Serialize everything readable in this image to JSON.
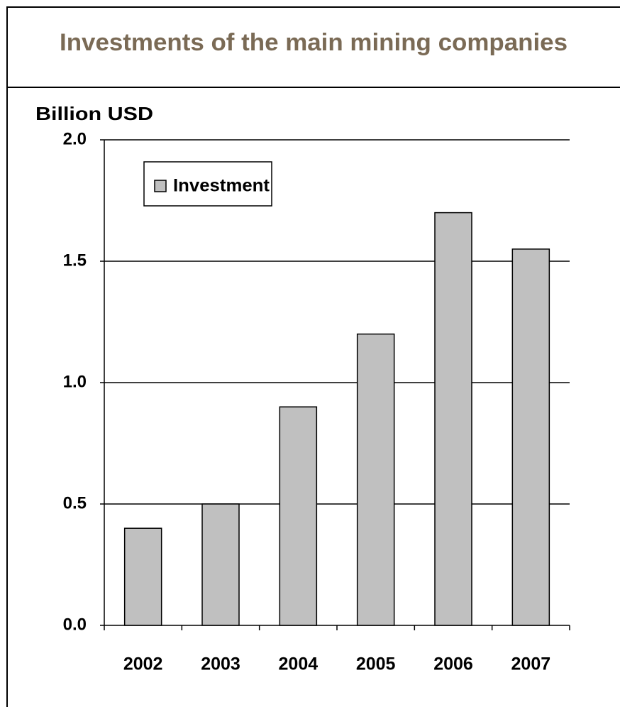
{
  "chart_data": {
    "type": "bar",
    "title": "Investments of the main mining companies",
    "y_label": "Billion USD",
    "categories": [
      "2002",
      "2003",
      "2004",
      "2005",
      "2006",
      "2007"
    ],
    "series": [
      {
        "name": "Investment",
        "color": "#c0c0c0",
        "values": [
          0.4,
          0.5,
          0.9,
          1.2,
          1.7,
          1.55
        ]
      }
    ],
    "ylim": [
      0,
      2
    ],
    "yticks": [
      {
        "value": 0,
        "label": "0.0"
      },
      {
        "value": 0.5,
        "label": "0.5"
      },
      {
        "value": 1,
        "label": "1.0"
      },
      {
        "value": 1.5,
        "label": "1.5"
      },
      {
        "value": 2,
        "label": "2.0"
      }
    ],
    "grid": true,
    "legend": "upper left"
  }
}
